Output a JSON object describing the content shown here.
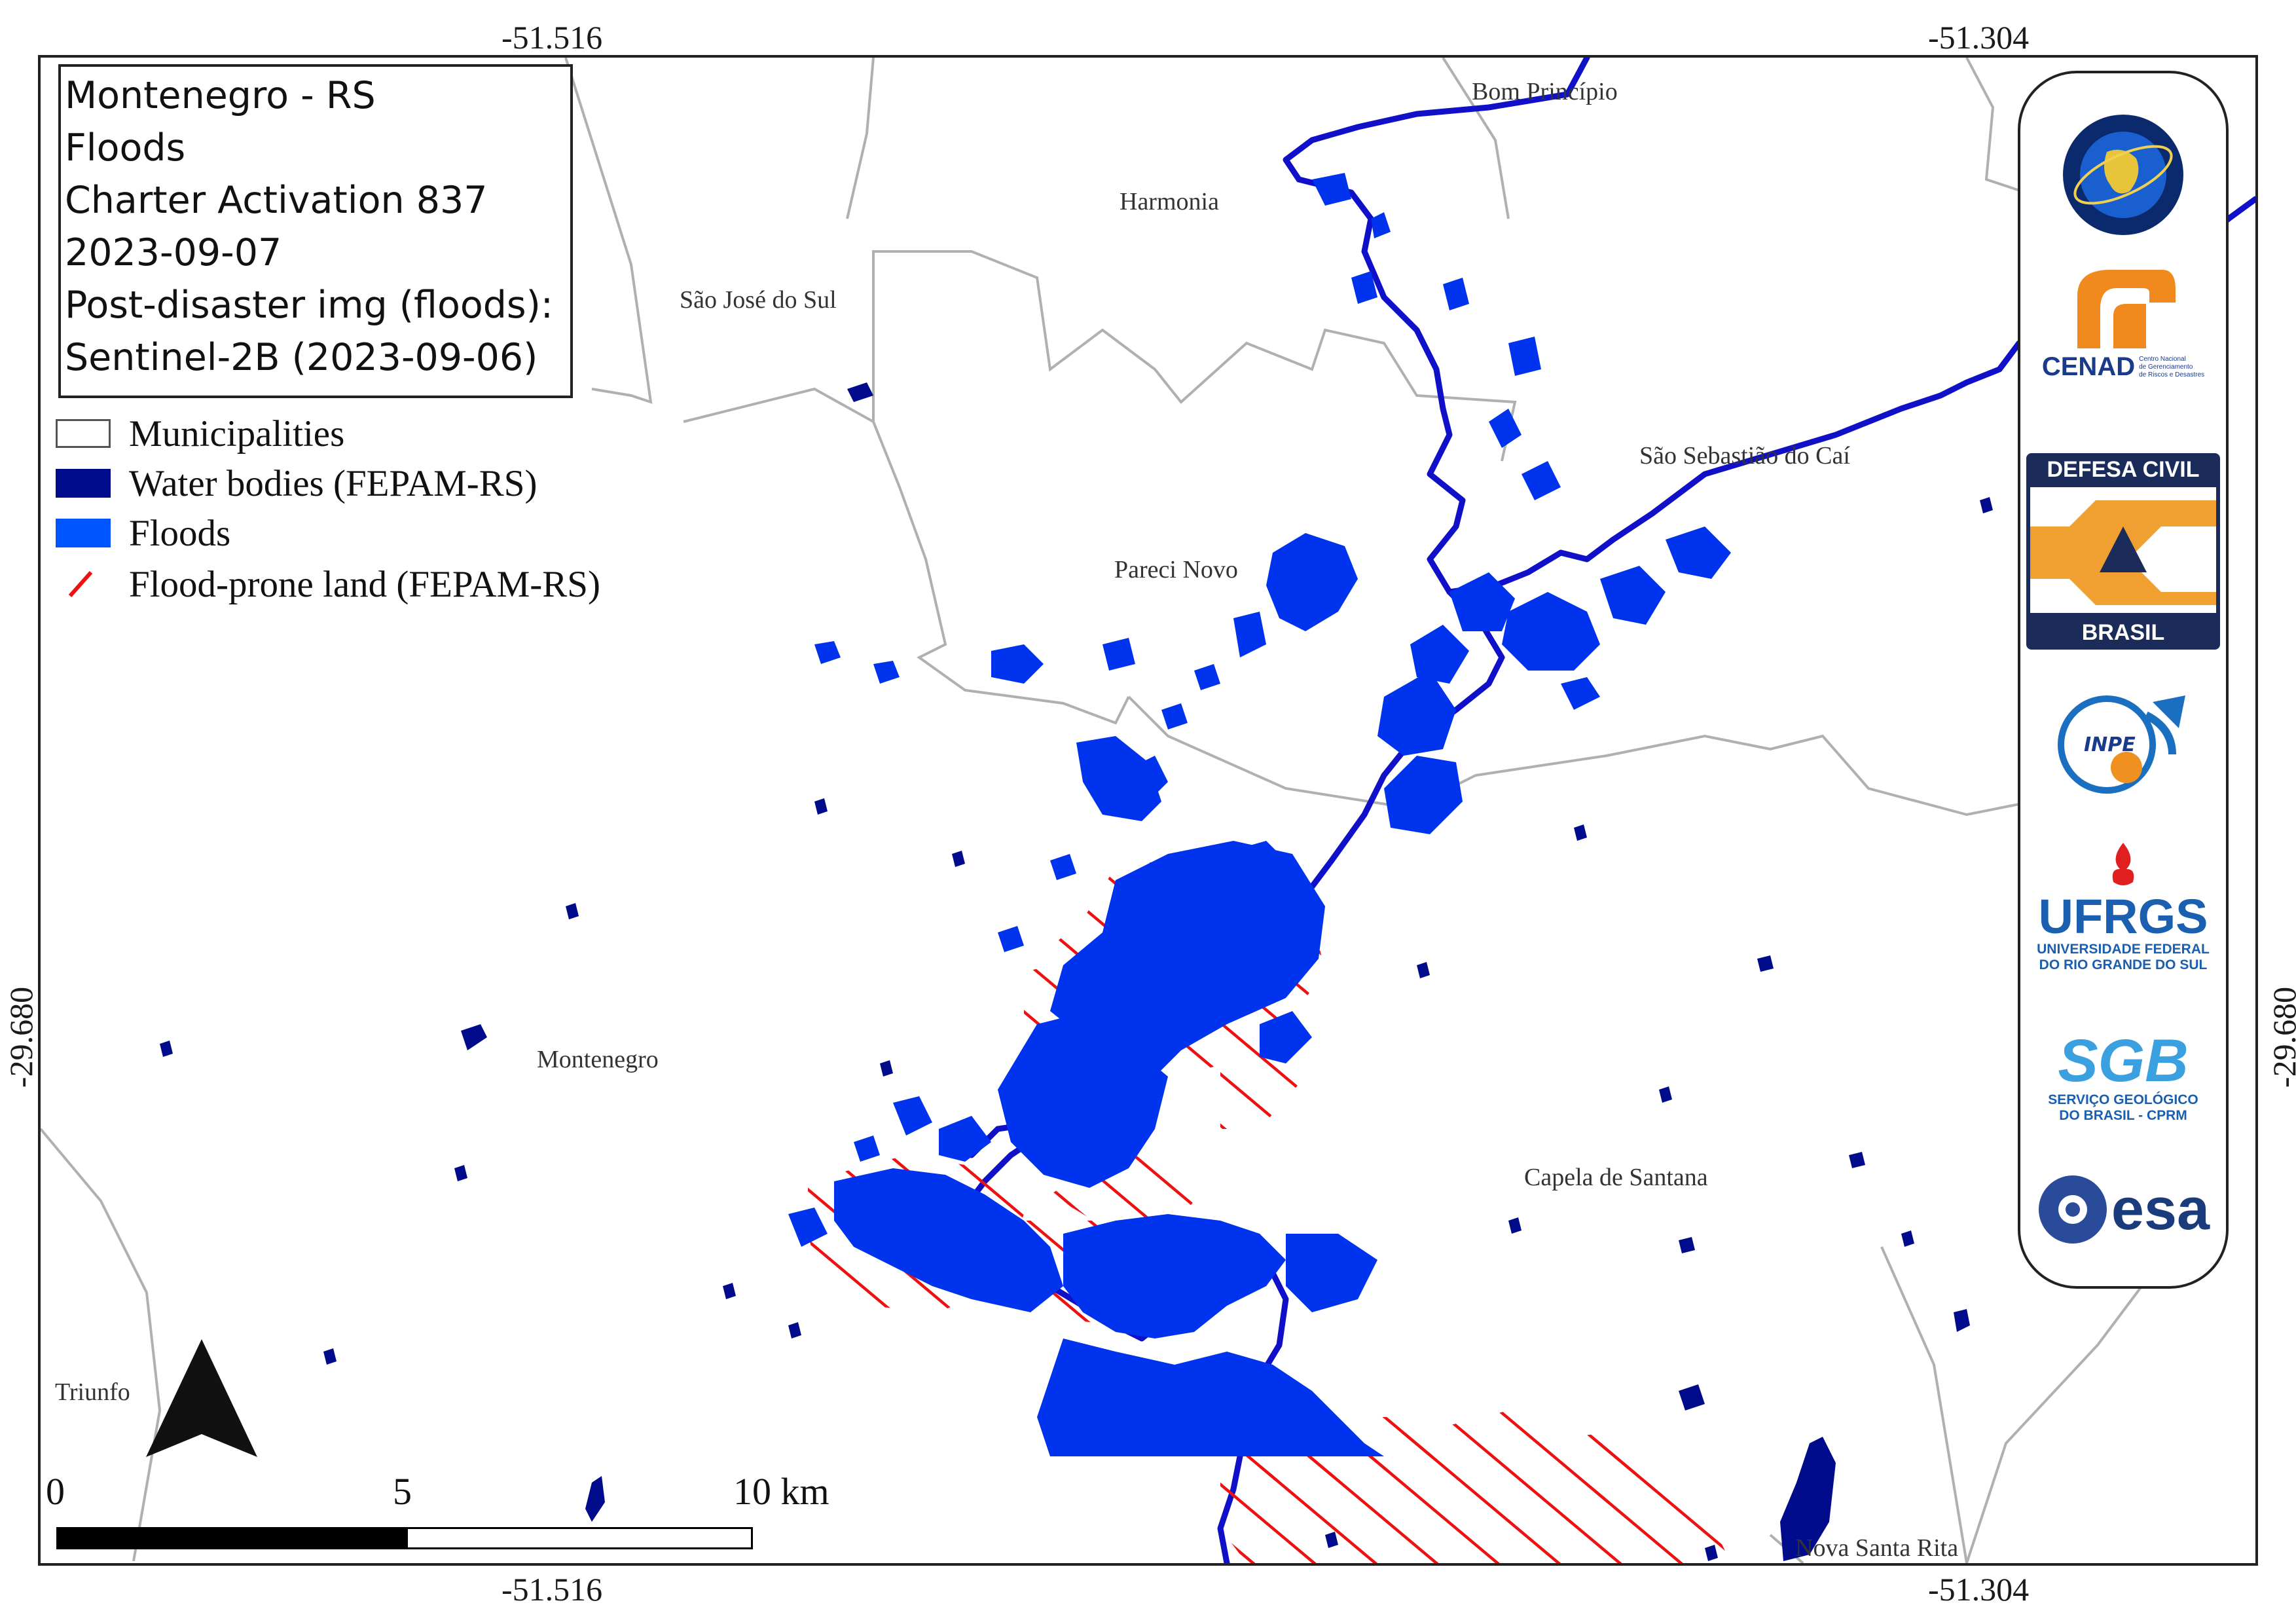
{
  "title_box": {
    "line1": "Montenegro - RS",
    "line2": "Floods",
    "line3": "Charter Activation 837",
    "line4": "2023-09-07",
    "line5": "Post-disaster img (floods):",
    "line6": "Sentinel-2B (2023-09-06)"
  },
  "legend": {
    "municipalities": "Municipalities",
    "water_bodies": "Water bodies (FEPAM-RS)",
    "floods": "Floods",
    "flood_prone": "Flood-prone land (FEPAM-RS)"
  },
  "coords": {
    "top_left": "-51.516",
    "top_right": "-51.304",
    "bottom_left": "-51.516",
    "bottom_right": "-51.304",
    "left": "-29.680",
    "right": "-29.680"
  },
  "places": {
    "bom_principio": "Bom Princípio",
    "harmonia": "Harmonia",
    "sao_jose": "São José do Sul",
    "sao_sebastiao": "São Sebastião do Caí",
    "pareci_novo": "Pareci Novo",
    "montenegro": "Montenegro",
    "capela": "Capela de Santana",
    "triunfo": "Triunfo",
    "nova_santa_rita": "Nova Santa Rita"
  },
  "scale_bar": {
    "zero": "0",
    "mid": "5",
    "end": "10 km"
  },
  "logos": {
    "cenad": "CENAD",
    "cenad_sub1": "Centro Nacional",
    "cenad_sub2": "de Gerenciamento",
    "cenad_sub3": "de Riscos e Desastres",
    "defesa_top": "DEFESA CIVIL",
    "defesa_bottom": "BRASIL",
    "inpe": "INPE",
    "ufrgs": "UFRGS",
    "ufrgs_sub1": "UNIVERSIDADE FEDERAL",
    "ufrgs_sub2": "DO RIO GRANDE DO SUL",
    "sgb": "SGB",
    "sgb_sub1": "SERVIÇO GEOLÓGICO",
    "sgb_sub2": "DO BRASIL - CPRM",
    "esa": "esa"
  },
  "colors": {
    "water_bodies": "#000c8c",
    "floods": "#0033ee",
    "flood_prone": "#ee1111",
    "boundaries": "#b0b0b0",
    "river": "#1010c8"
  }
}
